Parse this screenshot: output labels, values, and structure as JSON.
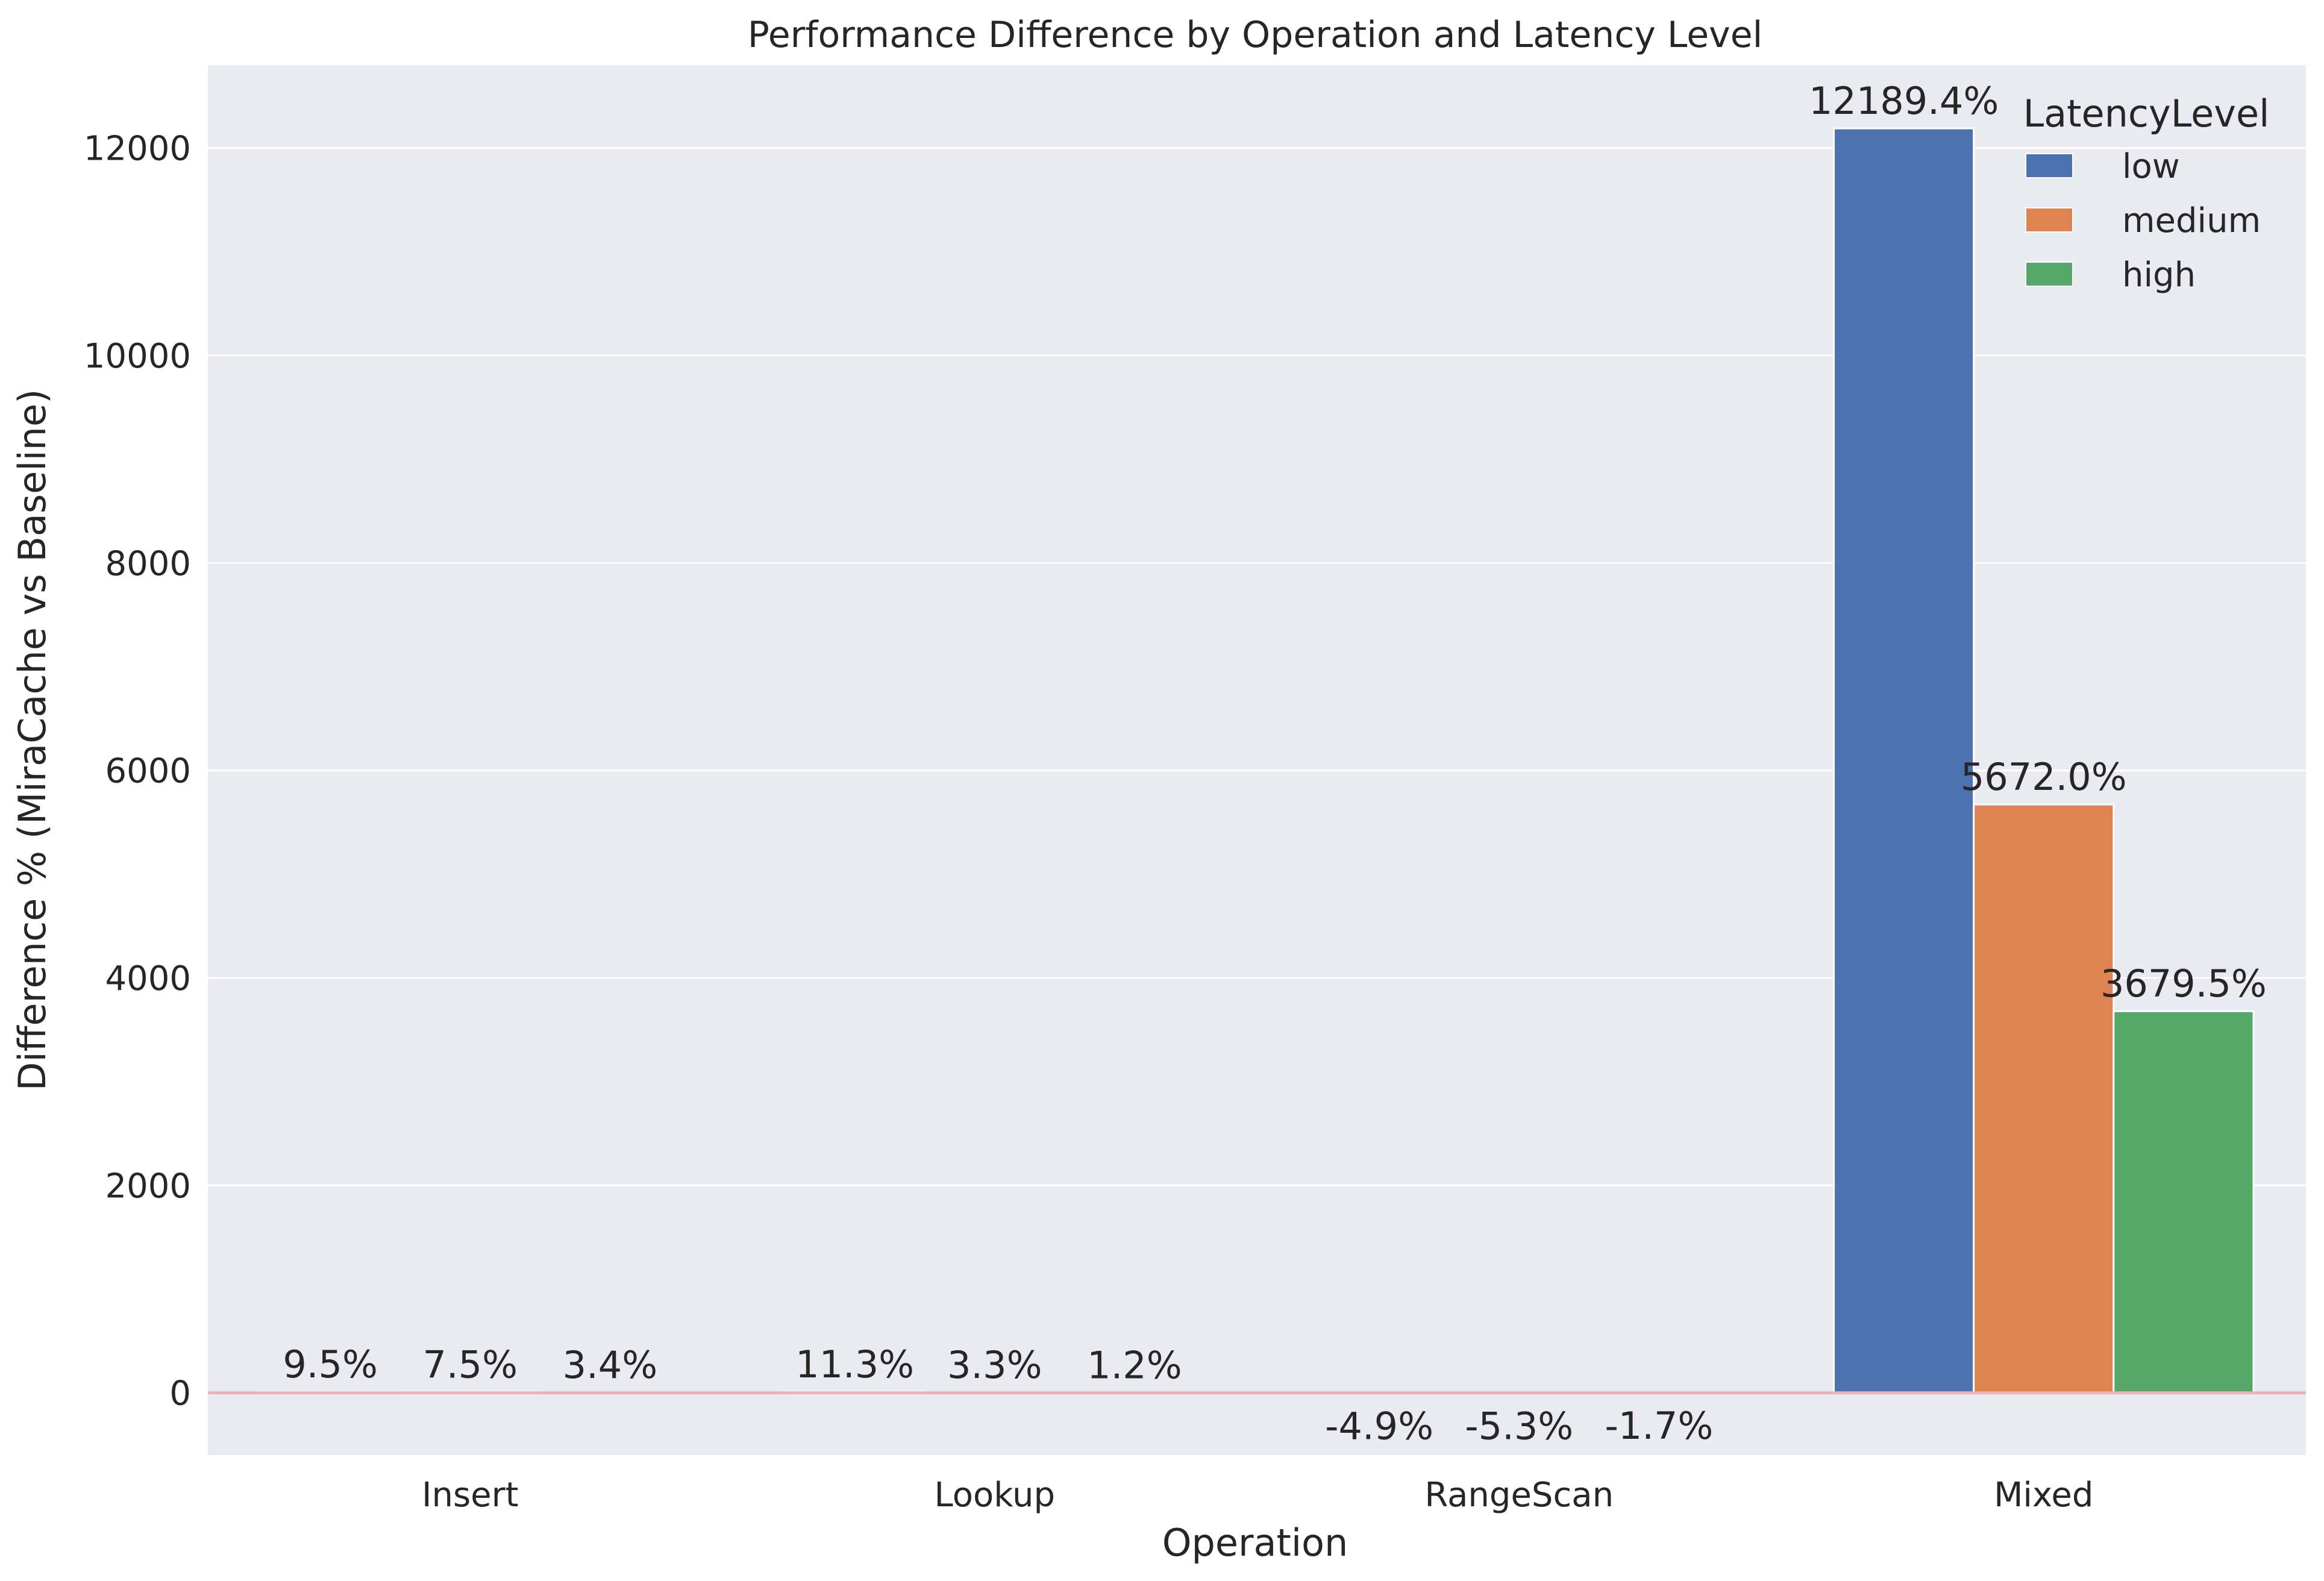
{
  "chart_data": {
    "type": "bar",
    "title": "Performance Difference by Operation and Latency Level",
    "xlabel": "Operation",
    "ylabel": "Difference % (MiraCache vs Baseline)",
    "categories": [
      "Insert",
      "Lookup",
      "RangeScan",
      "Mixed"
    ],
    "series": [
      {
        "name": "low",
        "color": "#4c72b0",
        "values": [
          9.5,
          11.3,
          -4.9,
          12189.4
        ],
        "labels": [
          "9.5%",
          "11.3%",
          "-4.9%",
          "12189.4%"
        ]
      },
      {
        "name": "medium",
        "color": "#dd8452",
        "values": [
          7.5,
          3.3,
          -5.3,
          5672.0
        ],
        "labels": [
          "7.5%",
          "3.3%",
          "-5.3%",
          "5672.0%"
        ]
      },
      {
        "name": "high",
        "color": "#55a868",
        "values": [
          3.4,
          1.2,
          -1.7,
          3679.5
        ],
        "labels": [
          "3.4%",
          "1.2%",
          "-1.7%",
          "3679.5%"
        ]
      }
    ],
    "ylim": [
      -600,
      12800
    ],
    "yticks": [
      0,
      2000,
      4000,
      6000,
      8000,
      10000,
      12000
    ],
    "grid": true,
    "legend": {
      "title": "LatencyLevel",
      "placement": "top-right"
    },
    "reference_line": {
      "y": 0,
      "color": "#e8b4b4"
    },
    "background": "#eaeaf2"
  }
}
